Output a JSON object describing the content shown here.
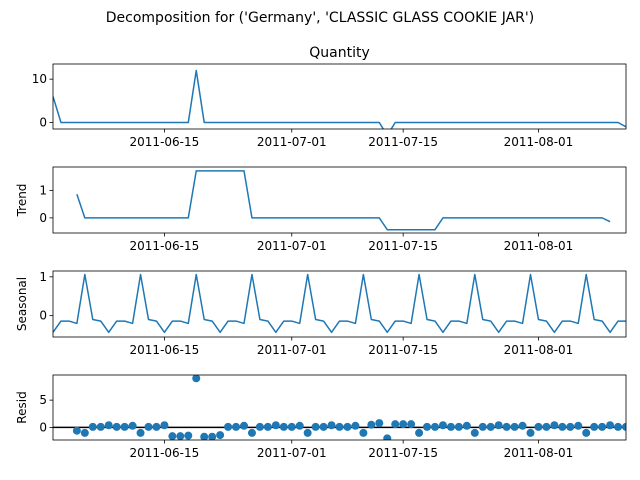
{
  "suptitle": "Decomposition for ('Germany', 'CLASSIC GLASS COOKIE JAR')",
  "colors": {
    "series": "#1f77b4",
    "axis": "#000000",
    "zero_line": "#000000"
  },
  "x_ticks": [
    {
      "day": 14,
      "label": "2011-06-15"
    },
    {
      "day": 30,
      "label": "2011-07-01"
    },
    {
      "day": 44,
      "label": "2011-07-15"
    },
    {
      "day": 61,
      "label": "2011-08-01"
    }
  ],
  "chart_data": [
    {
      "type": "line",
      "title": "Quantity",
      "ylabel": "",
      "start_date": "2011-06-01",
      "x_range_days": [
        0,
        72
      ],
      "ylim": [
        -1.5,
        13.5
      ],
      "yticks": [
        0,
        10
      ],
      "ytick_labels": [
        "0",
        "10"
      ],
      "values": [
        6,
        0,
        0,
        0,
        0,
        0,
        0,
        0,
        0,
        0,
        0,
        0,
        0,
        0,
        0,
        0,
        0,
        0,
        12,
        0,
        0,
        0,
        0,
        0,
        0,
        0,
        0,
        0,
        0,
        0,
        0,
        0,
        0,
        0,
        0,
        0,
        0,
        0,
        0,
        0,
        0,
        0,
        -3,
        0,
        0,
        0,
        0,
        0,
        0,
        0,
        0,
        0,
        0,
        0,
        0,
        0,
        0,
        0,
        0,
        0,
        0,
        0,
        0,
        0,
        0,
        0,
        0,
        0,
        0,
        0,
        0,
        0,
        -1
      ]
    },
    {
      "type": "line",
      "title": "",
      "ylabel": "Trend",
      "start_date": "2011-06-04",
      "x_range_days": [
        0,
        72
      ],
      "ylim": [
        -0.55,
        1.85
      ],
      "yticks": [
        0,
        1
      ],
      "ytick_labels": [
        "0",
        "1"
      ],
      "values": [
        0.86,
        0,
        0,
        0,
        0,
        0,
        0,
        0,
        0,
        0,
        0,
        0,
        0,
        0,
        0,
        1.71,
        1.71,
        1.71,
        1.71,
        1.71,
        1.71,
        1.71,
        0,
        0,
        0,
        0,
        0,
        0,
        0,
        0,
        0,
        0,
        0,
        0,
        0,
        0,
        0,
        0,
        0,
        -0.43,
        -0.43,
        -0.43,
        -0.43,
        -0.43,
        -0.43,
        -0.43,
        0,
        0,
        0,
        0,
        0,
        0,
        0,
        0,
        0,
        0,
        0,
        0,
        0,
        0,
        0,
        0,
        0,
        0,
        0,
        0,
        0,
        -0.14
      ]
    },
    {
      "type": "line",
      "title": "",
      "ylabel": "Seasonal",
      "start_date": "2011-06-01",
      "x_range_days": [
        0,
        72
      ],
      "ylim": [
        -0.55,
        1.15
      ],
      "yticks": [
        0,
        1
      ],
      "ytick_labels": [
        "0",
        "1"
      ],
      "season_pattern": [
        -0.43,
        -0.14,
        -0.14,
        -0.2,
        1.06,
        -0.1,
        -0.14
      ],
      "values": [
        -0.43,
        -0.14,
        -0.14,
        -0.2,
        1.06,
        -0.1,
        -0.14,
        -0.43,
        -0.14,
        -0.14,
        -0.2,
        1.06,
        -0.1,
        -0.14,
        -0.43,
        -0.14,
        -0.14,
        -0.2,
        1.06,
        -0.1,
        -0.14,
        -0.43,
        -0.14,
        -0.14,
        -0.2,
        1.06,
        -0.1,
        -0.14,
        -0.43,
        -0.14,
        -0.14,
        -0.2,
        1.06,
        -0.1,
        -0.14,
        -0.43,
        -0.14,
        -0.14,
        -0.2,
        1.06,
        -0.1,
        -0.14,
        -0.43,
        -0.14,
        -0.14,
        -0.2,
        1.06,
        -0.1,
        -0.14,
        -0.43,
        -0.14,
        -0.14,
        -0.2,
        1.06,
        -0.1,
        -0.14,
        -0.43,
        -0.14,
        -0.14,
        -0.2,
        1.06,
        -0.1,
        -0.14,
        -0.43,
        -0.14,
        -0.14,
        -0.2,
        1.06,
        -0.1,
        -0.14,
        -0.43,
        -0.14,
        -0.14
      ]
    },
    {
      "type": "scatter",
      "title": "",
      "ylabel": "Resid",
      "start_date": "2011-06-04",
      "x_range_days": [
        0,
        72
      ],
      "ylim": [
        -2.3,
        9.6
      ],
      "yticks": [
        0,
        5
      ],
      "ytick_labels": [
        "0",
        "5"
      ],
      "zero_line": true,
      "values": [
        -0.6,
        -1.0,
        0.1,
        0.1,
        0.4,
        0.1,
        0.1,
        0.3,
        -1.0,
        0.1,
        0.1,
        0.4,
        -1.6,
        -1.6,
        -1.5,
        9.0,
        -1.7,
        -1.7,
        -1.4,
        0.1,
        0.1,
        0.3,
        -1.0,
        0.1,
        0.1,
        0.4,
        0.1,
        0.1,
        0.3,
        -1.0,
        0.1,
        0.1,
        0.4,
        0.1,
        0.1,
        0.3,
        -1.0,
        0.5,
        0.8,
        -2.0,
        0.6,
        0.6,
        0.6,
        -1.0,
        0.1,
        0.1,
        0.4,
        0.1,
        0.1,
        0.3,
        -1.0,
        0.1,
        0.1,
        0.4,
        0.1,
        0.1,
        0.3,
        -1.0,
        0.1,
        0.1,
        0.4,
        0.1,
        0.1,
        0.3,
        -1.0,
        0.1,
        0.1,
        0.4,
        0.1,
        0.1,
        0.3,
        -1.0,
        0.1
      ]
    }
  ]
}
